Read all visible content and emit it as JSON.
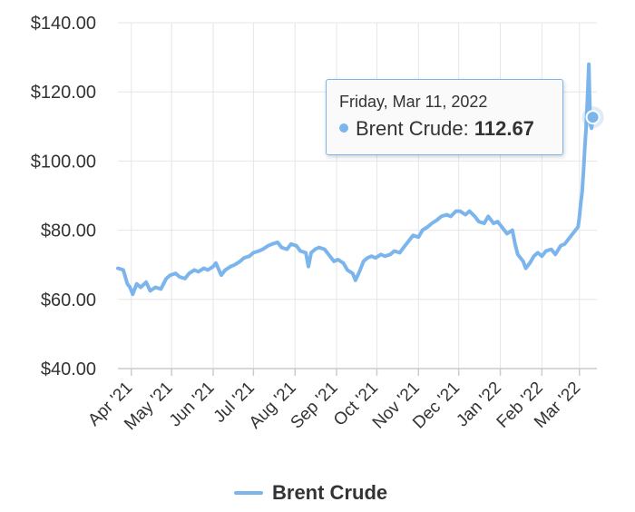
{
  "chart_data": {
    "type": "line",
    "title": "",
    "xlabel": "",
    "ylabel": "",
    "ylim": [
      40,
      140
    ],
    "y_ticks": [
      "$140.00",
      "$120.00",
      "$100.00",
      "$80.00",
      "$60.00",
      "$40.00"
    ],
    "y_tick_values": [
      140,
      120,
      100,
      80,
      60,
      40
    ],
    "x_ticks": [
      "Apr '21",
      "May '21",
      "Jun '21",
      "Jul '21",
      "Aug '21",
      "Sep '21",
      "Oct '21",
      "Nov '21",
      "Dec '21",
      "Jan '22",
      "Feb '22",
      "Mar '22"
    ],
    "x_tick_dates": [
      "2021-04-01",
      "2021-05-01",
      "2021-06-01",
      "2021-07-01",
      "2021-08-01",
      "2021-09-01",
      "2021-10-01",
      "2021-11-01",
      "2021-12-01",
      "2022-01-01",
      "2022-02-01",
      "2022-03-01"
    ],
    "x_range": [
      "2021-03-22",
      "2022-03-14"
    ],
    "grid": true,
    "legend": "bottom-center",
    "series": [
      {
        "name": "Brent Crude",
        "color": "#7cb5ec",
        "points": [
          [
            "2021-03-22",
            69.0
          ],
          [
            "2021-03-26",
            68.5
          ],
          [
            "2021-03-29",
            64.5
          ],
          [
            "2021-03-31",
            63.5
          ],
          [
            "2021-04-02",
            61.5
          ],
          [
            "2021-04-05",
            64.5
          ],
          [
            "2021-04-08",
            63.5
          ],
          [
            "2021-04-12",
            65.0
          ],
          [
            "2021-04-15",
            62.5
          ],
          [
            "2021-04-19",
            63.5
          ],
          [
            "2021-04-23",
            63.0
          ],
          [
            "2021-04-27",
            66.0
          ],
          [
            "2021-04-30",
            67.0
          ],
          [
            "2021-05-04",
            67.5
          ],
          [
            "2021-05-07",
            66.5
          ],
          [
            "2021-05-11",
            66.0
          ],
          [
            "2021-05-14",
            67.5
          ],
          [
            "2021-05-18",
            68.5
          ],
          [
            "2021-05-21",
            68.0
          ],
          [
            "2021-05-25",
            69.0
          ],
          [
            "2021-05-28",
            68.5
          ],
          [
            "2021-06-01",
            69.5
          ],
          [
            "2021-06-03",
            70.5
          ],
          [
            "2021-06-07",
            67.0
          ],
          [
            "2021-06-10",
            68.5
          ],
          [
            "2021-06-14",
            69.5
          ],
          [
            "2021-06-17",
            70.0
          ],
          [
            "2021-06-21",
            71.0
          ],
          [
            "2021-06-24",
            72.0
          ],
          [
            "2021-06-28",
            72.5
          ],
          [
            "2021-07-01",
            73.5
          ],
          [
            "2021-07-05",
            74.0
          ],
          [
            "2021-07-08",
            74.5
          ],
          [
            "2021-07-12",
            75.5
          ],
          [
            "2021-07-15",
            76.0
          ],
          [
            "2021-07-19",
            76.5
          ],
          [
            "2021-07-22",
            75.0
          ],
          [
            "2021-07-26",
            74.5
          ],
          [
            "2021-07-29",
            76.0
          ],
          [
            "2021-08-02",
            75.5
          ],
          [
            "2021-08-05",
            74.0
          ],
          [
            "2021-08-09",
            73.5
          ],
          [
            "2021-08-11",
            69.5
          ],
          [
            "2021-08-13",
            73.5
          ],
          [
            "2021-08-16",
            74.5
          ],
          [
            "2021-08-19",
            75.0
          ],
          [
            "2021-08-23",
            74.5
          ],
          [
            "2021-08-26",
            73.0
          ],
          [
            "2021-08-30",
            71.0
          ],
          [
            "2021-09-02",
            71.5
          ],
          [
            "2021-09-06",
            70.5
          ],
          [
            "2021-09-09",
            68.5
          ],
          [
            "2021-09-13",
            67.5
          ],
          [
            "2021-09-15",
            65.5
          ],
          [
            "2021-09-18",
            68.0
          ],
          [
            "2021-09-21",
            71.0
          ],
          [
            "2021-09-24",
            72.0
          ],
          [
            "2021-09-27",
            72.5
          ],
          [
            "2021-09-30",
            72.0
          ],
          [
            "2021-10-04",
            73.0
          ],
          [
            "2021-10-07",
            72.5
          ],
          [
            "2021-10-11",
            73.0
          ],
          [
            "2021-10-14",
            74.0
          ],
          [
            "2021-10-18",
            73.5
          ],
          [
            "2021-10-21",
            75.0
          ],
          [
            "2021-10-25",
            77.0
          ],
          [
            "2021-10-28",
            78.5
          ],
          [
            "2021-11-01",
            78.0
          ],
          [
            "2021-11-04",
            80.0
          ],
          [
            "2021-11-08",
            81.0
          ],
          [
            "2021-11-11",
            82.0
          ],
          [
            "2021-11-15",
            83.0
          ],
          [
            "2021-11-18",
            84.0
          ],
          [
            "2021-11-22",
            84.5
          ],
          [
            "2021-11-25",
            84.0
          ],
          [
            "2021-11-29",
            85.5
          ],
          [
            "2021-12-02",
            85.5
          ],
          [
            "2021-12-06",
            84.5
          ],
          [
            "2021-12-09",
            85.5
          ],
          [
            "2021-12-13",
            84.0
          ],
          [
            "2021-12-16",
            82.5
          ],
          [
            "2021-12-20",
            82.0
          ],
          [
            "2021-12-23",
            84.0
          ],
          [
            "2021-12-27",
            82.0
          ],
          [
            "2021-12-30",
            82.5
          ],
          [
            "2022-01-03",
            80.5
          ],
          [
            "2022-01-06",
            79.0
          ],
          [
            "2022-01-10",
            80.0
          ],
          [
            "2022-01-12",
            76.0
          ],
          [
            "2022-01-14",
            73.0
          ],
          [
            "2022-01-18",
            71.0
          ],
          [
            "2022-01-20",
            69.0
          ],
          [
            "2022-01-23",
            70.5
          ],
          [
            "2022-01-26",
            72.5
          ],
          [
            "2022-01-29",
            73.5
          ],
          [
            "2022-02-01",
            72.5
          ],
          [
            "2022-02-04",
            74.0
          ],
          [
            "2022-02-08",
            74.5
          ],
          [
            "2022-02-11",
            73.0
          ],
          [
            "2022-02-15",
            75.5
          ],
          [
            "2022-02-18",
            76.0
          ],
          [
            "2022-02-22",
            78.0
          ],
          [
            "2022-02-25",
            79.5
          ],
          [
            "2022-02-28",
            81.0
          ],
          [
            "2022-03-01",
            84.0
          ],
          [
            "2022-03-02",
            88.0
          ],
          [
            "2022-03-03",
            91.0
          ],
          [
            "2022-03-04",
            97.0
          ],
          [
            "2022-03-05",
            104.0
          ],
          [
            "2022-03-06",
            110.0
          ],
          [
            "2022-03-07",
            118.0
          ],
          [
            "2022-03-08",
            128.0
          ],
          [
            "2022-03-09",
            111.0
          ],
          [
            "2022-03-10",
            109.5
          ],
          [
            "2022-03-11",
            112.67
          ]
        ]
      }
    ],
    "highlight": {
      "date": "2022-03-11",
      "value": 112.67
    }
  },
  "tooltip": {
    "date_label": "Friday, Mar 11, 2022",
    "series_label": "Brent Crude: ",
    "value_label": "112.67"
  },
  "legend": {
    "label": "Brent Crude"
  }
}
